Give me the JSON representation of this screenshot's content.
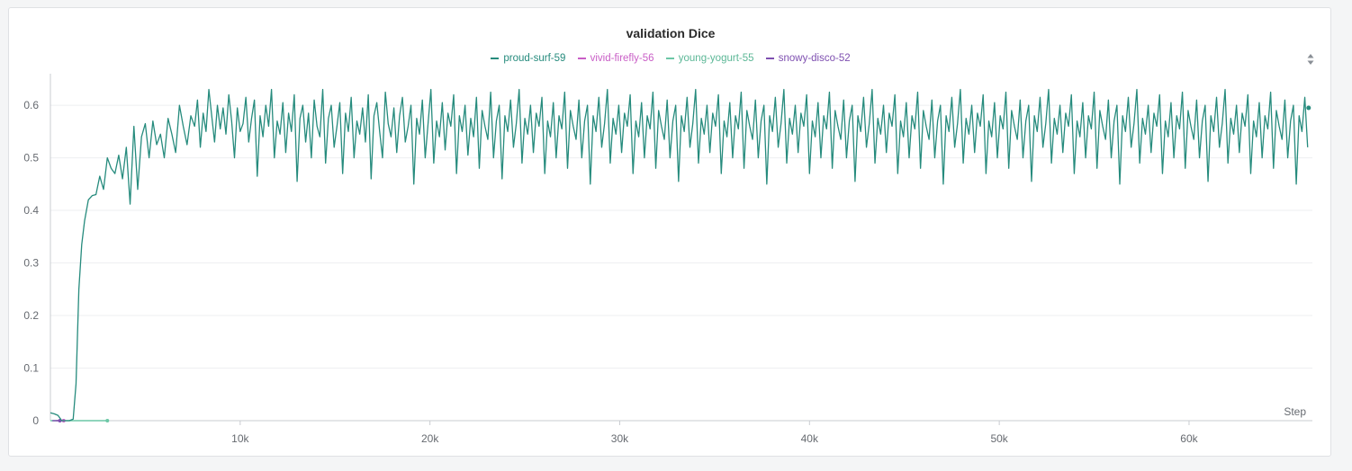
{
  "chart_data": {
    "type": "line",
    "title": "validation Dice",
    "xlabel": "Step",
    "ylabel": "",
    "xlim": [
      0,
      66500
    ],
    "ylim": [
      0,
      0.66
    ],
    "x_ticks": [
      10000,
      20000,
      30000,
      40000,
      50000,
      60000
    ],
    "x_tick_labels": [
      "10k",
      "20k",
      "30k",
      "40k",
      "50k",
      "60k"
    ],
    "y_ticks": [
      0,
      0.1,
      0.2,
      0.3,
      0.4,
      0.5,
      0.6
    ],
    "y_tick_labels": [
      "0",
      "0.1",
      "0.2",
      "0.3",
      "0.4",
      "0.5",
      "0.6"
    ],
    "grid": true,
    "legend_position": "top-center",
    "series": [
      {
        "name": "proud-surf-59",
        "color": "#268b7d",
        "early": {
          "x": [
            0,
            200,
            400,
            600,
            800,
            1000,
            1200,
            1350,
            1500,
            1650,
            1800,
            2000,
            2200,
            2400,
            2600,
            2800,
            3000,
            3200,
            3400,
            3600,
            3800,
            4000,
            4200,
            4400,
            4600,
            4800,
            5000,
            5200,
            5400,
            5600,
            5800,
            6000,
            6200,
            6400,
            6600,
            6800,
            7000,
            7200,
            7400
          ],
          "y": [
            0.015,
            0.013,
            0.01,
            0.0,
            0.0,
            0.0,
            0.003,
            0.07,
            0.25,
            0.335,
            0.38,
            0.42,
            0.428,
            0.43,
            0.465,
            0.44,
            0.5,
            0.48,
            0.47,
            0.505,
            0.46,
            0.52,
            0.412,
            0.56,
            0.44,
            0.54,
            0.565,
            0.5,
            0.57,
            0.525,
            0.545,
            0.5,
            0.575,
            0.545,
            0.51,
            0.6,
            0.56,
            0.525,
            0.58
          ]
        },
        "tail_start_x": 7600,
        "x_step": 150,
        "y_tail": [
          0.56,
          0.61,
          0.52,
          0.585,
          0.55,
          0.63,
          0.58,
          0.53,
          0.6,
          0.555,
          0.595,
          0.545,
          0.62,
          0.57,
          0.5,
          0.595,
          0.55,
          0.565,
          0.615,
          0.53,
          0.575,
          0.61,
          0.465,
          0.58,
          0.54,
          0.6,
          0.56,
          0.63,
          0.5,
          0.57,
          0.545,
          0.605,
          0.51,
          0.585,
          0.55,
          0.62,
          0.455,
          0.575,
          0.6,
          0.53,
          0.585,
          0.5,
          0.61,
          0.56,
          0.54,
          0.63,
          0.49,
          0.575,
          0.6,
          0.52,
          0.56,
          0.605,
          0.47,
          0.585,
          0.55,
          0.615,
          0.5,
          0.57,
          0.545,
          0.595,
          0.53,
          0.62,
          0.46,
          0.58,
          0.605,
          0.55,
          0.5,
          0.625,
          0.565,
          0.54,
          0.595,
          0.51,
          0.58,
          0.615,
          0.53,
          0.56,
          0.6,
          0.45,
          0.575,
          0.545,
          0.61,
          0.5,
          0.565,
          0.63,
          0.49,
          0.57,
          0.54,
          0.605,
          0.515,
          0.585,
          0.56,
          0.62,
          0.47,
          0.58,
          0.55,
          0.6,
          0.505,
          0.575,
          0.54,
          0.615,
          0.48,
          0.59,
          0.56,
          0.535,
          0.625,
          0.5,
          0.57,
          0.6,
          0.46,
          0.58,
          0.55,
          0.61,
          0.52,
          0.565,
          0.63,
          0.49,
          0.575,
          0.545,
          0.6,
          0.51,
          0.585,
          0.56,
          0.615,
          0.47,
          0.57,
          0.54,
          0.605,
          0.5,
          0.58,
          0.555,
          0.625,
          0.48,
          0.59,
          0.56,
          0.535,
          0.61,
          0.5,
          0.57,
          0.6,
          0.45,
          0.58,
          0.55,
          0.615,
          0.52,
          0.565,
          0.63,
          0.49,
          0.575,
          0.545,
          0.6,
          0.51,
          0.585,
          0.56,
          0.62,
          0.47,
          0.57,
          0.54,
          0.605,
          0.5,
          0.58,
          0.555,
          0.625,
          0.48,
          0.59,
          0.56,
          0.535,
          0.61,
          0.5,
          0.57,
          0.6,
          0.455,
          0.58,
          0.55,
          0.615,
          0.52,
          0.565,
          0.63,
          0.49,
          0.575,
          0.545,
          0.6,
          0.51,
          0.585,
          0.56,
          0.62,
          0.47,
          0.57,
          0.54,
          0.605,
          0.5,
          0.58,
          0.555,
          0.625,
          0.48,
          0.59,
          0.56,
          0.535,
          0.61,
          0.5,
          0.57,
          0.6,
          0.45,
          0.58,
          0.55,
          0.615,
          0.52,
          0.565,
          0.63,
          0.49,
          0.575,
          0.545,
          0.6,
          0.51,
          0.585,
          0.56,
          0.62,
          0.47,
          0.57,
          0.54,
          0.605,
          0.5,
          0.58,
          0.555,
          0.625,
          0.48,
          0.59,
          0.56,
          0.535,
          0.61,
          0.5,
          0.57,
          0.6,
          0.455,
          0.58,
          0.55,
          0.615,
          0.52,
          0.565,
          0.63,
          0.49,
          0.575,
          0.545,
          0.6,
          0.51,
          0.585,
          0.56,
          0.62,
          0.47,
          0.57,
          0.54,
          0.605,
          0.5,
          0.58,
          0.555,
          0.625,
          0.48,
          0.59,
          0.56,
          0.535,
          0.61,
          0.5,
          0.57,
          0.6,
          0.45,
          0.58,
          0.55,
          0.615,
          0.52,
          0.565,
          0.63,
          0.49,
          0.575,
          0.545,
          0.6,
          0.51,
          0.585,
          0.56,
          0.62,
          0.47,
          0.57,
          0.54,
          0.605,
          0.5,
          0.58,
          0.555,
          0.625,
          0.48,
          0.59,
          0.56,
          0.535,
          0.61,
          0.5,
          0.57,
          0.6,
          0.455,
          0.58,
          0.55,
          0.615,
          0.52,
          0.565,
          0.63,
          0.49,
          0.575,
          0.545,
          0.6,
          0.51,
          0.585,
          0.56,
          0.62,
          0.47,
          0.57,
          0.54,
          0.605,
          0.5,
          0.58,
          0.555,
          0.625,
          0.48,
          0.59,
          0.56,
          0.535,
          0.61,
          0.5,
          0.57,
          0.6,
          0.45,
          0.58,
          0.55,
          0.615,
          0.52,
          0.565,
          0.63,
          0.49,
          0.575,
          0.545,
          0.6,
          0.51,
          0.585,
          0.56,
          0.62,
          0.47,
          0.57,
          0.54,
          0.605,
          0.5,
          0.58,
          0.555,
          0.625,
          0.48,
          0.59,
          0.56,
          0.535,
          0.61,
          0.5,
          0.57,
          0.6,
          0.455,
          0.58,
          0.55,
          0.615,
          0.52,
          0.565,
          0.63,
          0.49,
          0.575,
          0.545,
          0.6,
          0.51,
          0.585,
          0.56,
          0.62,
          0.47,
          0.57,
          0.54,
          0.605,
          0.5,
          0.58,
          0.555,
          0.625,
          0.48,
          0.59,
          0.56,
          0.535,
          0.61,
          0.5,
          0.57,
          0.6,
          0.45,
          0.58,
          0.55,
          0.615,
          0.52,
          0.565,
          0.63,
          0.49,
          0.575,
          0.545,
          0.6,
          0.51,
          0.585,
          0.56,
          0.62,
          0.47,
          0.57,
          0.54,
          0.605,
          0.5,
          0.58,
          0.555,
          0.625,
          0.48,
          0.59,
          0.56,
          0.535,
          0.61,
          0.5,
          0.57,
          0.6,
          0.455,
          0.58,
          0.55,
          0.615,
          0.52,
          0.565,
          0.63,
          0.49,
          0.575,
          0.545,
          0.6,
          0.51,
          0.585,
          0.56,
          0.62,
          0.47,
          0.57,
          0.54,
          0.605,
          0.5,
          0.58,
          0.555,
          0.625,
          0.48,
          0.59,
          0.56,
          0.535,
          0.61,
          0.5,
          0.57,
          0.6,
          0.45,
          0.58,
          0.55,
          0.615,
          0.52,
          0.565,
          0.63,
          0.49,
          0.575,
          0.545,
          0.6,
          0.51,
          0.585,
          0.56,
          0.62,
          0.47,
          0.57,
          0.54,
          0.605,
          0.5,
          0.58,
          0.555,
          0.625,
          0.48,
          0.59,
          0.595
        ],
        "last_point": [
          66300,
          0.595
        ]
      },
      {
        "name": "vivid-firefly-56",
        "color": "#c95ec6",
        "x": [
          300,
          700
        ],
        "y": [
          0.0,
          0.0
        ]
      },
      {
        "name": "young-yogurt-55",
        "color": "#6cc7a6",
        "x": [
          0,
          3000
        ],
        "y": [
          0.0,
          0.0
        ]
      },
      {
        "name": "snowy-disco-52",
        "color": "#7e4fb0",
        "x": [
          100,
          500
        ],
        "y": [
          0.0,
          0.0
        ]
      }
    ]
  }
}
